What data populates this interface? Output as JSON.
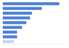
{
  "chart_data": {
    "type": "bar",
    "orientation": "horizontal",
    "categories": [
      null,
      null,
      null,
      null,
      null,
      null,
      null,
      null,
      null
    ],
    "values": [
      91,
      63,
      47,
      44,
      38,
      31,
      23,
      23,
      18
    ],
    "colors": [
      "#4a7fd6",
      "#4a7fd6",
      "#4a7fd6",
      "#4a7fd6",
      "#4a7fd6",
      "#4a7fd6",
      "#4a7fd6",
      "#4a7fd6",
      "#c3d4f0"
    ],
    "ylim": [
      0,
      100
    ],
    "tick_labels": false,
    "grid": false
  }
}
